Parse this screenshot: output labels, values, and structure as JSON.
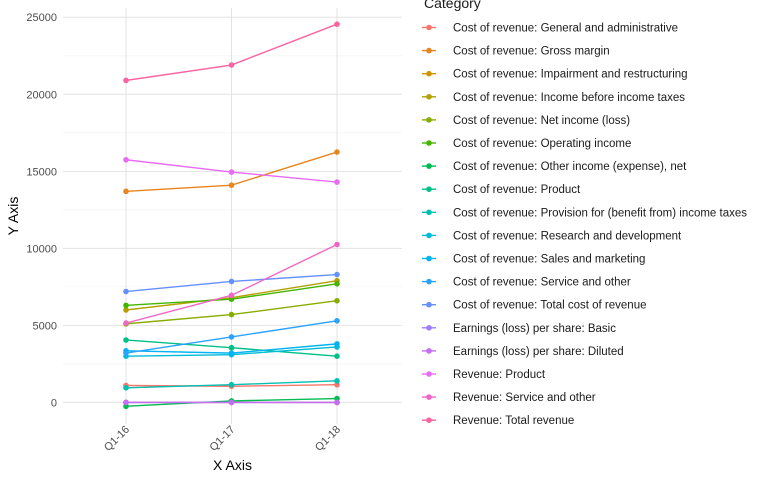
{
  "chart_data": {
    "type": "line",
    "xlabel": "X Axis",
    "ylabel": "Y Axis",
    "legend_title": "Category",
    "legend_position": "right",
    "grid": true,
    "categories": [
      "Q1-16",
      "Q1-17",
      "Q1-18"
    ],
    "ylim": [
      -1400,
      25600
    ],
    "yticks": [
      0,
      5000,
      10000,
      15000,
      20000,
      25000
    ],
    "series": [
      {
        "name": "Cost of revenue: General and administrative",
        "color": "#F8766D",
        "values": [
          1100,
          1050,
          1150
        ]
      },
      {
        "name": "Cost of revenue: Gross margin",
        "color": "#E7851E",
        "values": [
          13700,
          14100,
          16250
        ]
      },
      {
        "name": "Cost of revenue: Impairment and restructuring",
        "color": "#D09400",
        "values": [
          0,
          0,
          0
        ]
      },
      {
        "name": "Cost of revenue: Income before income taxes",
        "color": "#B2A100",
        "values": [
          6000,
          6800,
          7900
        ]
      },
      {
        "name": "Cost of revenue: Net income (loss)",
        "color": "#89AC00",
        "values": [
          5100,
          5700,
          6600
        ]
      },
      {
        "name": "Cost of revenue: Operating income",
        "color": "#45B500",
        "values": [
          6300,
          6700,
          7700
        ]
      },
      {
        "name": "Cost of revenue: Other income (expense), net",
        "color": "#00BC51",
        "values": [
          -250,
          100,
          250
        ]
      },
      {
        "name": "Cost of revenue: Product",
        "color": "#00C087",
        "values": [
          4050,
          3550,
          3000
        ]
      },
      {
        "name": "Cost of revenue: Provision for (benefit from) income taxes",
        "color": "#00C0B2",
        "values": [
          950,
          1150,
          1400
        ]
      },
      {
        "name": "Cost of revenue: Research and development",
        "color": "#00BCD6",
        "values": [
          3000,
          3100,
          3600
        ]
      },
      {
        "name": "Cost of revenue: Sales and marketing",
        "color": "#00B3F2",
        "values": [
          3350,
          3200,
          3800
        ]
      },
      {
        "name": "Cost of revenue: Service and other",
        "color": "#29A3FF",
        "values": [
          3200,
          4250,
          5300
        ]
      },
      {
        "name": "Cost of revenue: Total cost of revenue",
        "color": "#6590FF",
        "values": [
          7200,
          7850,
          8300
        ]
      },
      {
        "name": "Earnings (loss) per share: Basic",
        "color": "#9C7DFF",
        "values": [
          0,
          0,
          0
        ]
      },
      {
        "name": "Earnings (loss) per share: Diluted",
        "color": "#C66CF6",
        "values": [
          0,
          0,
          0
        ]
      },
      {
        "name": "Revenue: Product",
        "color": "#E76BF3",
        "values": [
          15750,
          14950,
          14300
        ]
      },
      {
        "name": "Revenue: Service and other",
        "color": "#F066C8",
        "values": [
          5150,
          6950,
          10250
        ]
      },
      {
        "name": "Revenue: Total revenue",
        "color": "#FA62A0",
        "values": [
          20900,
          21900,
          24550
        ]
      }
    ]
  }
}
